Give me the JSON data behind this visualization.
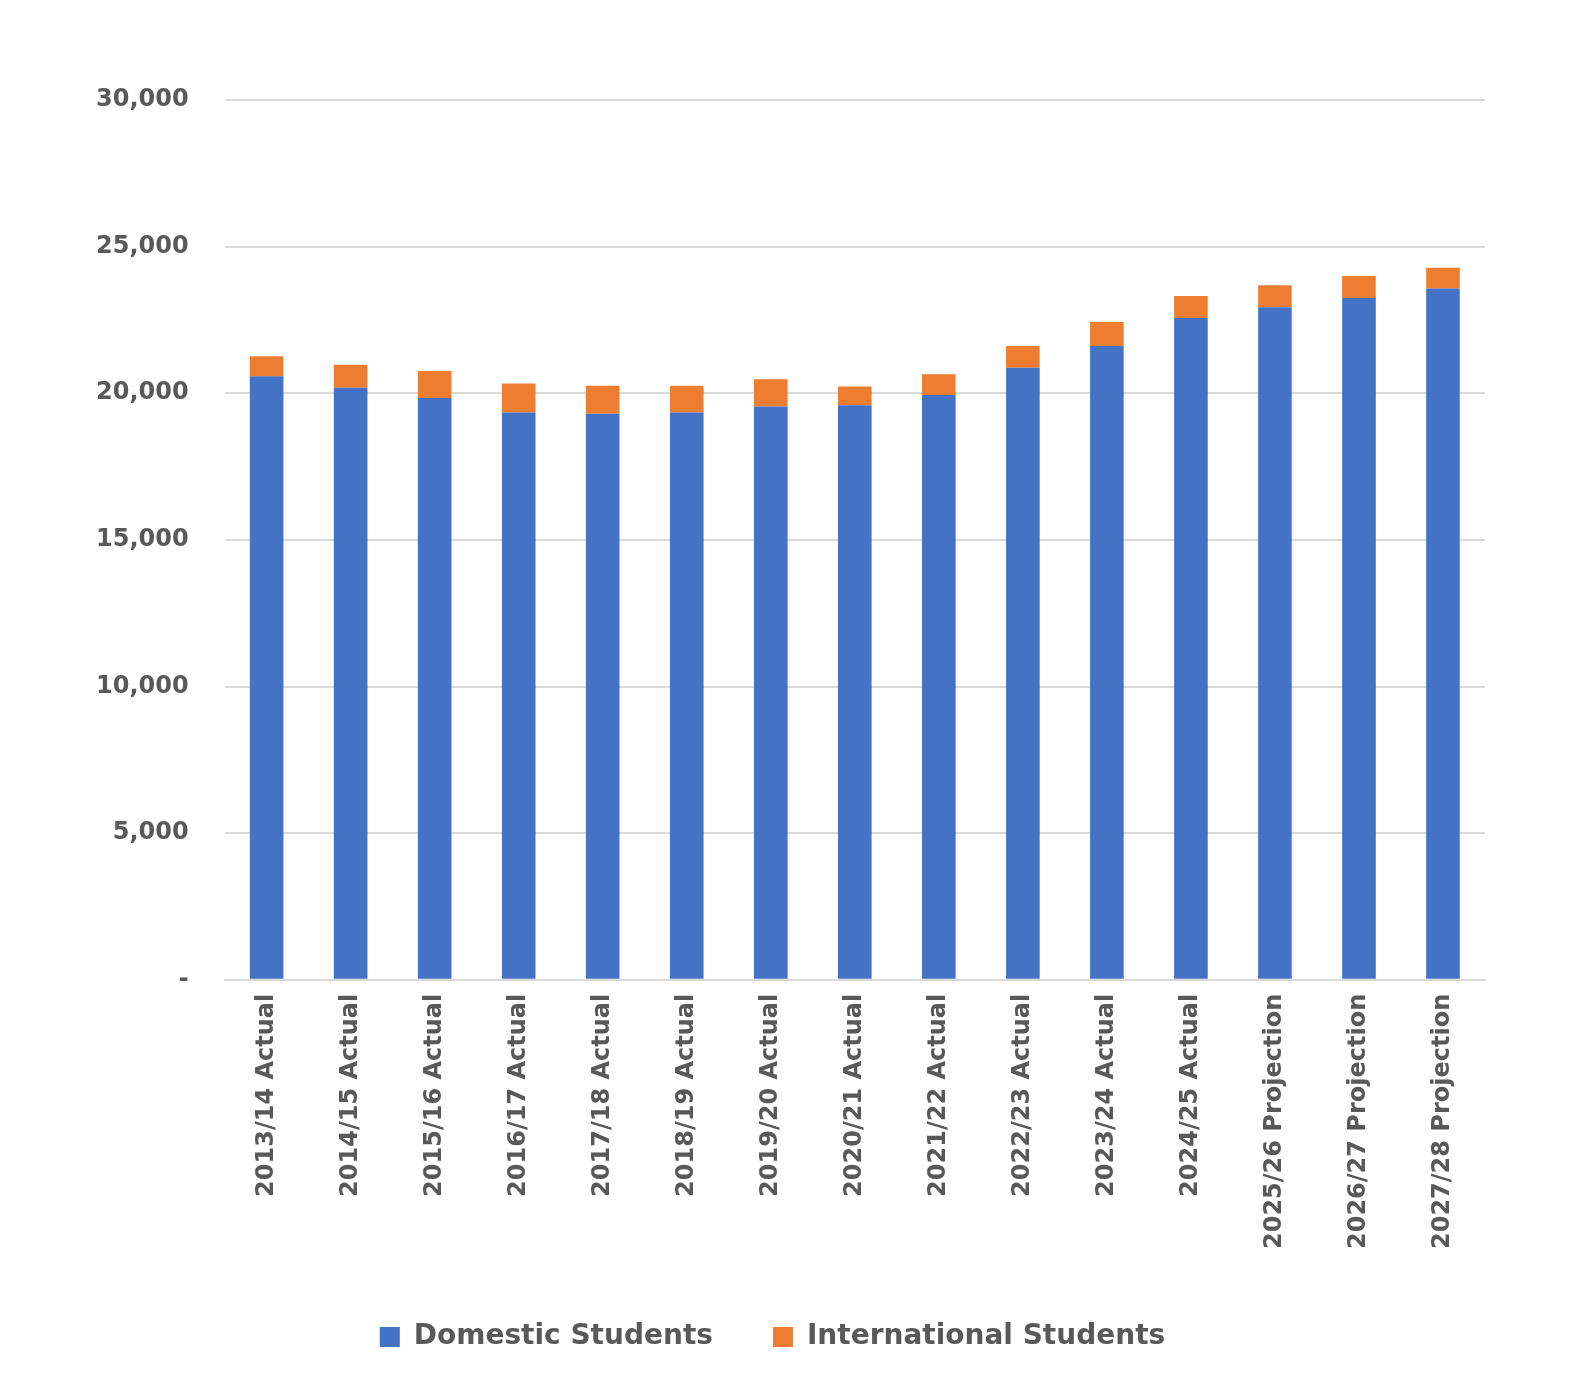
{
  "chart_data": {
    "type": "bar",
    "stacked": true,
    "categories": [
      "2013/14 Actual",
      "2014/15 Actual",
      "2015/16 Actual",
      "2016/17 Actual",
      "2017/18 Actual",
      "2018/19 Actual",
      "2019/20 Actual",
      "2020/21 Actual",
      "2021/22 Actual",
      "2022/23 Actual",
      "2023/24 Actual",
      "2024/25 Actual",
      "2025/26 Projection",
      "2026/27 Projection",
      "2027/28 Projection"
    ],
    "series": [
      {
        "name": "Domestic Students",
        "color": "#4472c4",
        "values": [
          20580,
          20190,
          19840,
          19340,
          19300,
          19340,
          19550,
          19590,
          19940,
          20870,
          21610,
          22570,
          22930,
          23250,
          23570
        ]
      },
      {
        "name": "International Students",
        "color": "#ed7d31",
        "values": [
          680,
          780,
          920,
          990,
          960,
          920,
          930,
          640,
          710,
          740,
          820,
          750,
          750,
          750,
          710
        ]
      }
    ],
    "ylim": [
      0,
      30000
    ],
    "yticks": [
      {
        "value": 0,
        "label": "-"
      },
      {
        "value": 5000,
        "label": "5,000"
      },
      {
        "value": 10000,
        "label": "10,000"
      },
      {
        "value": 15000,
        "label": "15,000"
      },
      {
        "value": 20000,
        "label": "20,000"
      },
      {
        "value": 25000,
        "label": "25,000"
      },
      {
        "value": 30000,
        "label": "30,000"
      }
    ],
    "grid": "y",
    "legend": "bottom"
  }
}
